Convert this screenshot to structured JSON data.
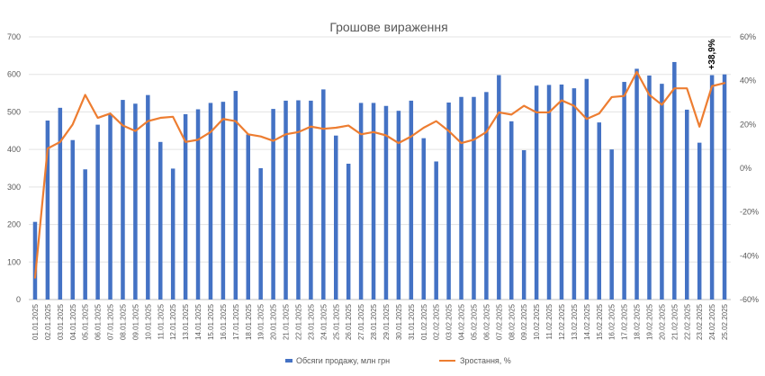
{
  "chart_data": {
    "type": "bar+line",
    "title": "Грошове вираження",
    "categories": [
      "01.01.2025",
      "02.01.2025",
      "03.01.2025",
      "04.01.2025",
      "05.01.2025",
      "06.01.2025",
      "07.01.2025",
      "08.01.2025",
      "09.01.2025",
      "10.01.2025",
      "11.01.2025",
      "12.01.2025",
      "13.01.2025",
      "14.01.2025",
      "15.01.2025",
      "16.01.2025",
      "17.01.2025",
      "18.01.2025",
      "19.01.2025",
      "20.01.2025",
      "21.01.2025",
      "22.01.2025",
      "23.01.2025",
      "24.01.2025",
      "25.01.2025",
      "26.01.2025",
      "27.01.2025",
      "28.01.2025",
      "29.01.2025",
      "30.01.2025",
      "31.01.2025",
      "01.02.2025",
      "02.02.2025",
      "03.02.2025",
      "04.02.2025",
      "05.02.2025",
      "06.02.2025",
      "07.02.2025",
      "08.02.2025",
      "09.02.2025",
      "10.02.2025",
      "11.02.2025",
      "12.02.2025",
      "13.02.2025",
      "14.02.2025",
      "15.02.2025",
      "16.02.2025",
      "17.02.2025",
      "18.02.2025",
      "19.02.2025",
      "20.02.2025",
      "21.02.2025",
      "22.02.2025",
      "23.02.2025",
      "24.02.2025",
      "25.02.2025"
    ],
    "series": [
      {
        "name": "Обсяги продажу, млн грн",
        "kind": "bar",
        "axis": "left",
        "color": "#4472C4",
        "values": [
          207,
          477,
          511,
          425,
          347,
          466,
          494,
          532,
          522,
          545,
          420,
          349,
          494,
          507,
          524,
          527,
          556,
          440,
          350,
          508,
          530,
          531,
          530,
          560,
          437,
          362,
          524,
          524,
          516,
          503,
          530,
          430,
          368,
          525,
          540,
          540,
          553,
          598,
          475,
          398,
          570,
          572,
          573,
          563,
          588,
          472,
          400,
          580,
          615,
          597,
          575,
          633,
          506,
          418,
          598,
          600
        ]
      },
      {
        "name": "Зростання, %",
        "kind": "line",
        "axis": "right",
        "color": "#ED7D31",
        "values": [
          -50,
          9,
          12,
          20,
          33.5,
          23,
          25,
          19.5,
          17,
          21.5,
          23,
          23.5,
          12,
          13,
          16.5,
          22.5,
          21.5,
          15.5,
          14.5,
          12.5,
          15.5,
          16.5,
          19,
          18,
          18.5,
          19.5,
          15.5,
          16.5,
          15,
          11.5,
          14.5,
          18.5,
          21.5,
          17,
          11.5,
          13,
          16.5,
          25.5,
          24.5,
          28.5,
          25.5,
          25.5,
          31,
          28.5,
          22.5,
          25,
          32.5,
          33,
          44,
          33.5,
          29,
          36.5,
          36.5,
          19,
          37.5,
          38.9
        ]
      }
    ],
    "y_left": {
      "min": 0,
      "max": 700,
      "step": 100,
      "ticks": [
        "0",
        "100",
        "200",
        "300",
        "400",
        "500",
        "600",
        "700"
      ]
    },
    "y_right": {
      "min": -60,
      "max": 60,
      "step": 20,
      "ticks": [
        "-60%",
        "-40%",
        "-20%",
        "0%",
        "20%",
        "40%",
        "60%"
      ]
    },
    "annotation": {
      "text": "+38,9%",
      "category": "24.02.2025"
    },
    "grid": true,
    "legend": {
      "placement": "bottom",
      "entries": [
        "Обсяги продажу, млн грн",
        "Зростання, %"
      ]
    }
  }
}
